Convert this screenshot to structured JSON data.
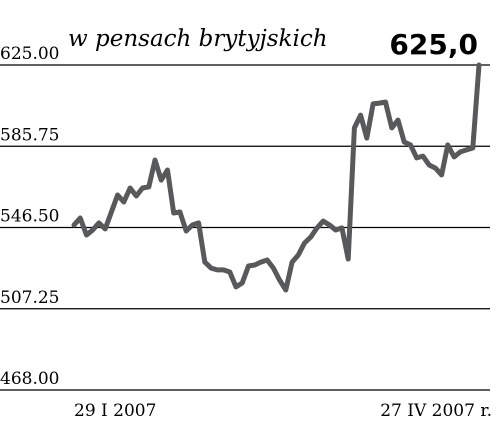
{
  "chart_data": {
    "type": "line",
    "title": "w pensach brytyjskich",
    "headline": "625,0",
    "categories": [
      "29 I 2007",
      null,
      null,
      null,
      null,
      null,
      null,
      null,
      null,
      null,
      null,
      null,
      null,
      null,
      null,
      null,
      null,
      null,
      null,
      null,
      null,
      null,
      null,
      null,
      null,
      null,
      null,
      null,
      null,
      null,
      null,
      null,
      null,
      null,
      null,
      null,
      null,
      null,
      null,
      null,
      null,
      null,
      null,
      null,
      null,
      null,
      null,
      null,
      null,
      null,
      null,
      null,
      null,
      null,
      null,
      null,
      null,
      null,
      null,
      null,
      null,
      null,
      null,
      null,
      null,
      "27 IV 2007 r."
    ],
    "series": [
      {
        "color": "#58595b",
        "values": [
          547.7,
          551.1,
          542.9,
          545.3,
          548.7,
          545.8,
          554.0,
          562.2,
          558.8,
          565.6,
          561.7,
          565.6,
          566.1,
          579.1,
          569.4,
          574.3,
          553.5,
          554.0,
          544.8,
          547.7,
          548.7,
          529.8,
          526.9,
          526.0,
          526.0,
          525.0,
          517.8,
          519.7,
          527.9,
          528.4,
          529.8,
          530.8,
          526.9,
          521.1,
          516.3,
          529.8,
          533.2,
          539.0,
          541.9,
          546.3,
          549.6,
          547.7,
          545.3,
          546.3,
          531.3,
          594.6,
          600.8,
          589.7,
          606.2,
          606.6,
          607.1,
          594.6,
          598.4,
          587.8,
          586.4,
          580.1,
          581.0,
          576.7,
          575.2,
          571.9,
          586.4,
          580.6,
          583.0,
          584.0,
          584.9,
          625.0
        ]
      }
    ],
    "ylim": [
      468,
      625
    ],
    "yticks": [
      {
        "value": 468,
        "label": "468.00"
      },
      507.25,
      {
        "value": 546.5,
        "label": "546.50"
      },
      585.75,
      {
        "value": 625,
        "label": "625.00"
      }
    ],
    "grid": true
  }
}
